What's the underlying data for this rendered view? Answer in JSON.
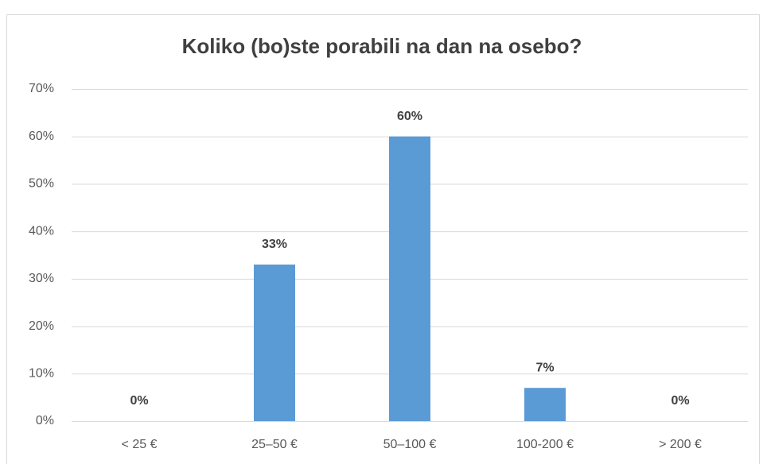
{
  "chart_data": {
    "type": "bar",
    "title": "Koliko (bo)ste porabili na dan na osebo?",
    "categories": [
      "< 25 €",
      "25–50 €",
      "50–100 €",
      "100-200 €",
      "> 200 €"
    ],
    "values": [
      0,
      33,
      60,
      7,
      0
    ],
    "value_labels": [
      "0%",
      "33%",
      "60%",
      "7%",
      "0%"
    ],
    "color": "#5b9bd5",
    "ylim": [
      0,
      70
    ],
    "yticks": [
      {
        "value": 0,
        "label": "0%"
      },
      {
        "value": 10,
        "label": "10%"
      },
      {
        "value": 20,
        "label": "20%"
      },
      {
        "value": 30,
        "label": "30%"
      },
      {
        "value": 40,
        "label": "40%"
      },
      {
        "value": 50,
        "label": "50%"
      },
      {
        "value": 60,
        "label": "60%"
      },
      {
        "value": 70,
        "label": "70%"
      }
    ],
    "grid": true
  }
}
